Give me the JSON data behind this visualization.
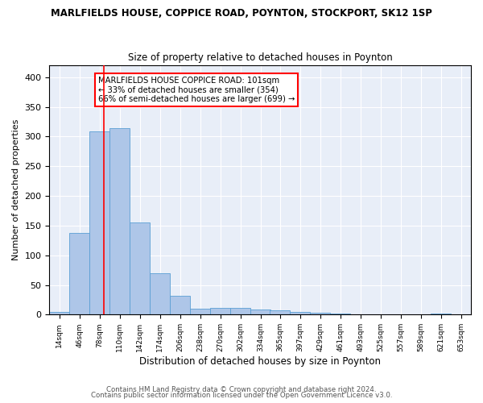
{
  "title1": "MARLFIELDS HOUSE, COPPICE ROAD, POYNTON, STOCKPORT, SK12 1SP",
  "title2": "Size of property relative to detached houses in Poynton",
  "xlabel": "Distribution of detached houses by size in Poynton",
  "ylabel": "Number of detached properties",
  "footer1": "Contains HM Land Registry data © Crown copyright and database right 2024.",
  "footer2": "Contains public sector information licensed under the Open Government Licence v3.0.",
  "annotation_line1": "MARLFIELDS HOUSE COPPICE ROAD: 101sqm",
  "annotation_line2": "← 33% of detached houses are smaller (354)",
  "annotation_line3": "66% of semi-detached houses are larger (699) →",
  "bar_color": "#aec6e8",
  "bar_edge_color": "#5a9fd4",
  "background_color": "#e8eef8",
  "grid_color": "#ffffff",
  "red_line_x": 101,
  "categories": [
    "14sqm",
    "46sqm",
    "78sqm",
    "110sqm",
    "142sqm",
    "174sqm",
    "206sqm",
    "238sqm",
    "270sqm",
    "302sqm",
    "334sqm",
    "365sqm",
    "397sqm",
    "429sqm",
    "461sqm",
    "493sqm",
    "525sqm",
    "557sqm",
    "589sqm",
    "621sqm",
    "653sqm"
  ],
  "bin_edges": [
    14,
    46,
    78,
    110,
    142,
    174,
    206,
    238,
    270,
    302,
    334,
    365,
    397,
    429,
    461,
    493,
    525,
    557,
    589,
    621,
    653
  ],
  "bin_width": 32,
  "values": [
    4,
    137,
    309,
    314,
    155,
    70,
    32,
    10,
    12,
    12,
    9,
    7,
    4,
    3,
    2,
    0,
    0,
    0,
    0,
    2
  ],
  "ylim": [
    0,
    420
  ],
  "yticks": [
    0,
    50,
    100,
    150,
    200,
    250,
    300,
    350,
    400
  ],
  "xlim_min": 14,
  "xlim_max": 685
}
